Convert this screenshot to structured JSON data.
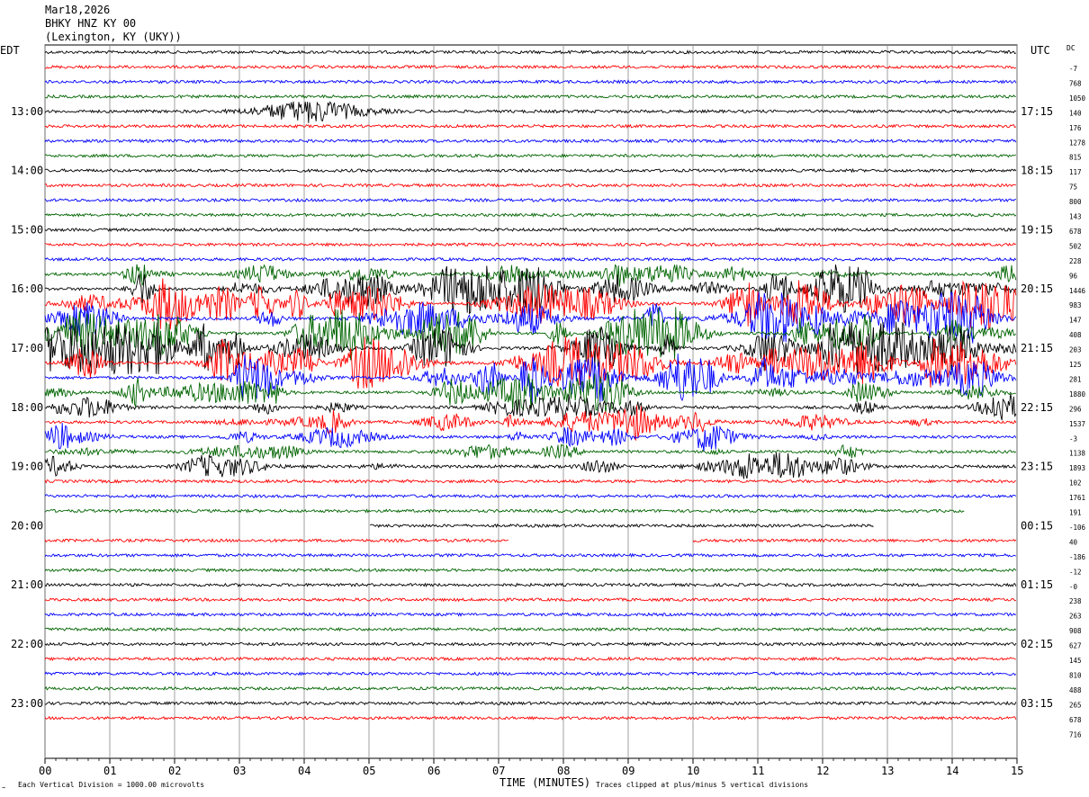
{
  "header": {
    "date": "Mar18,2026",
    "station": "BHKY HNZ KY 00",
    "location": "(Lexington, KY (UKY))"
  },
  "chart_data": {
    "type": "seismogram",
    "left_timezone": "EDT",
    "right_timezone": "UTC",
    "dc_header": "DC",
    "xlabel": "TIME (MINUTES)",
    "x_ticks": [
      "00",
      "01",
      "02",
      "03",
      "04",
      "05",
      "06",
      "07",
      "08",
      "09",
      "10",
      "11",
      "12",
      "13",
      "14",
      "15"
    ],
    "xlim": [
      0,
      15
    ],
    "left_hour_labels": [
      "13:00",
      "14:00",
      "15:00",
      "16:00",
      "17:00",
      "18:00",
      "19:00",
      "20:00",
      "21:00",
      "22:00",
      "23:00"
    ],
    "right_hour_labels": [
      "17:15",
      "18:15",
      "19:15",
      "20:15",
      "21:15",
      "22:15",
      "23:15",
      "00:15",
      "01:15",
      "02:15",
      "03:15"
    ],
    "trace_colors": [
      "#000000",
      "#ff0000",
      "#0000ff",
      "#006400"
    ],
    "dc_offsets": [
      "-7",
      "768",
      "1050",
      "140",
      "176",
      "1278",
      "815",
      "117",
      "75",
      "800",
      "143",
      "678",
      "502",
      "228",
      "96",
      "1446",
      "983",
      "147",
      "408",
      "203",
      "125",
      "281",
      "1880",
      "296",
      "1537",
      "-3",
      "1138",
      "1893",
      "102",
      "1761",
      "191",
      "-106",
      "40",
      "-186",
      "-12",
      "-0",
      "238",
      "263",
      "908",
      "627",
      "145",
      "810",
      "488",
      "265",
      "678",
      "716"
    ],
    "trace_activity": [
      1,
      1,
      1,
      1,
      1,
      1,
      1,
      1,
      1,
      1,
      1,
      1,
      1,
      1,
      1,
      3,
      6,
      6,
      7,
      6,
      7,
      7,
      6,
      4,
      3,
      3,
      3,
      2,
      3,
      1,
      1,
      1,
      1,
      1,
      1,
      1,
      1,
      1,
      1,
      1,
      1,
      1,
      1,
      1,
      1,
      1
    ],
    "gaps": [
      {
        "trace": 31,
        "from_minute": 14.2,
        "to_minute": 15
      },
      {
        "trace": 32,
        "from_minute": 0,
        "to_minute": 5.0
      },
      {
        "trace": 32,
        "from_minute": 12.8,
        "to_minute": 15
      },
      {
        "trace": 33,
        "from_minute": 7.15,
        "to_minute": 10.0
      }
    ],
    "footer_left": "Each Vertical Division = 1000.00 microvolts",
    "footer_right": "Traces clipped at plus/minus 5 vertical divisions"
  }
}
